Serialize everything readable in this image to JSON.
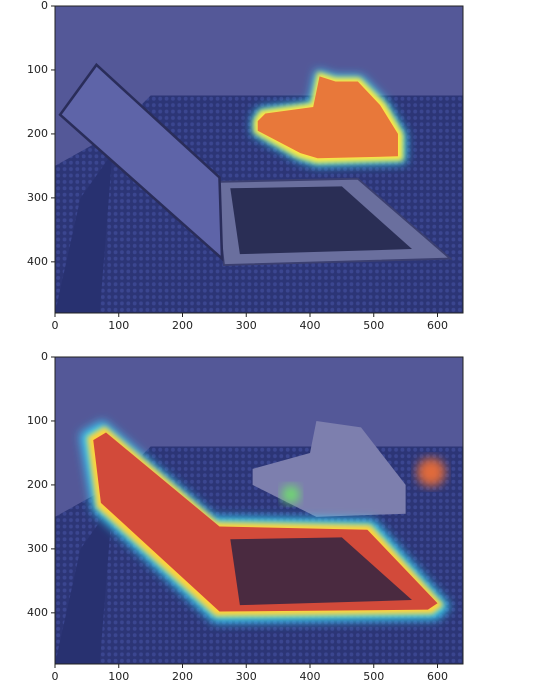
{
  "chart_data": [
    {
      "type": "image",
      "xlim": [
        0,
        640
      ],
      "ylim": [
        480,
        0
      ],
      "xticks": [
        0,
        100,
        200,
        300,
        400,
        500,
        600
      ],
      "yticks": [
        0,
        100,
        200,
        300,
        400
      ]
    },
    {
      "type": "image",
      "xlim": [
        0,
        640
      ],
      "ylim": [
        480,
        0
      ],
      "xticks": [
        0,
        100,
        200,
        300,
        400,
        500,
        600
      ],
      "yticks": [
        0,
        100,
        200,
        300,
        400
      ]
    }
  ]
}
